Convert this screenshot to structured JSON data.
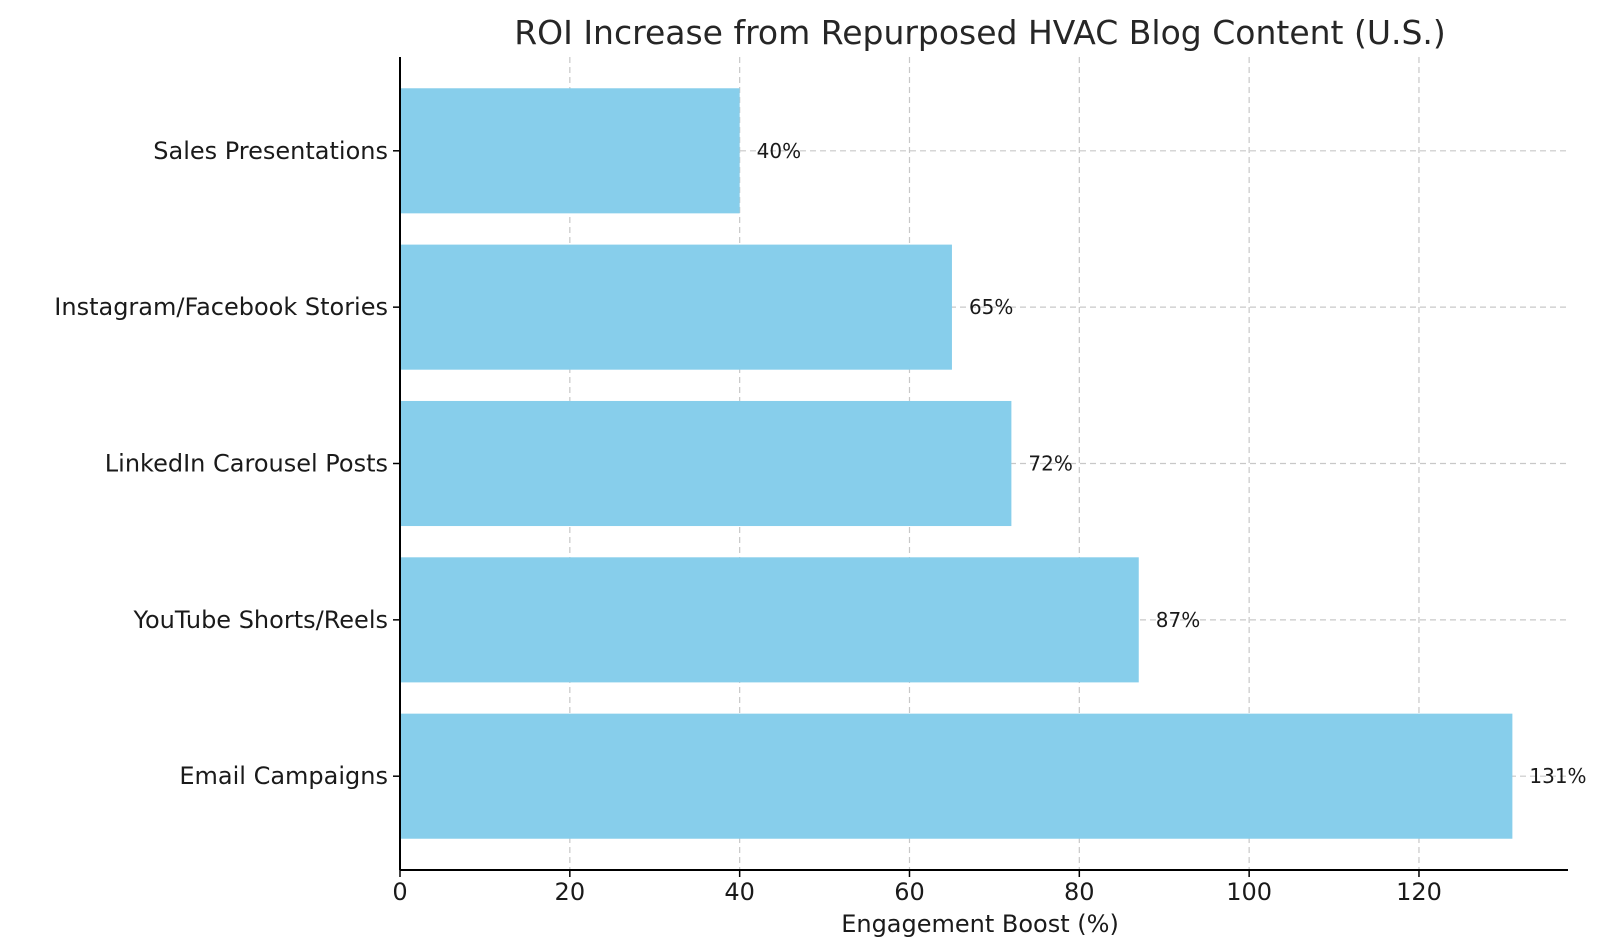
{
  "chart_data": {
    "type": "bar",
    "orientation": "horizontal",
    "title": "ROI Increase from Repurposed HVAC Blog Content (U.S.)",
    "xlabel": "Engagement Boost (%)",
    "ylabel": "",
    "categories": [
      "Email Campaigns",
      "YouTube Shorts/Reels",
      "LinkedIn Carousel Posts",
      "Instagram/Facebook Stories",
      "Sales Presentations"
    ],
    "values": [
      131,
      87,
      72,
      65,
      40
    ],
    "data_labels": [
      "131%",
      "87%",
      "72%",
      "65%",
      "40%"
    ],
    "xlim": [
      0,
      137.55
    ],
    "xticks": [
      0,
      20,
      40,
      60,
      80,
      100,
      120
    ],
    "grid": true,
    "bar_color": "#87ceeb"
  }
}
